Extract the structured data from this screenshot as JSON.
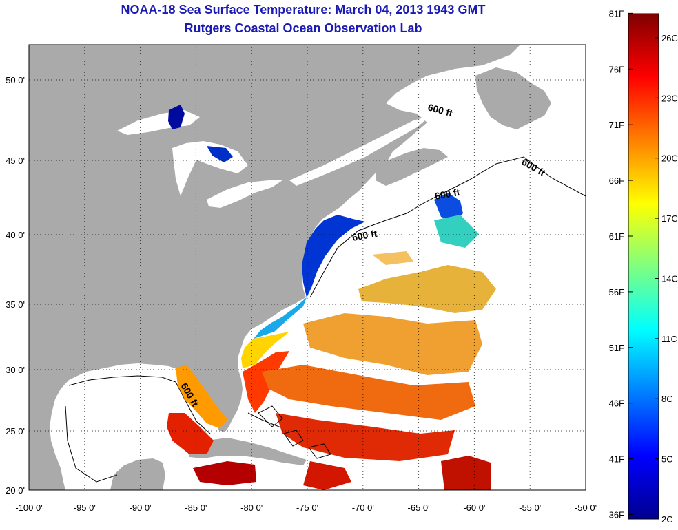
{
  "title": "NOAA-18 Sea Surface Temperature:  March 04, 2013 1943 GMT",
  "subtitle": "Rutgers Coastal Ocean Observation Lab",
  "map": {
    "lon_ticks": [
      "-100 0'",
      "-95 0'",
      "-90 0'",
      "-85 0'",
      "-80 0'",
      "-75 0'",
      "-70 0'",
      "-65 0'",
      "-60 0'",
      "-55 0'",
      "-50 0'"
    ],
    "lat_ticks": [
      "50 0'",
      "45 0'",
      "40 0'",
      "35 0'",
      "30 0'",
      "25 0'",
      "20 0'"
    ],
    "contour_labels": [
      "600 ft",
      "600 ft",
      "600 ft",
      "600 ft",
      "600 ft"
    ],
    "land_color": "#aaaaaa",
    "lake_color": "#ffffff"
  },
  "colorbar": {
    "fahrenheit": [
      "81F",
      "76F",
      "71F",
      "66F",
      "61F",
      "56F",
      "51F",
      "46F",
      "41F",
      "36F"
    ],
    "celsius": [
      "26C",
      "23C",
      "20C",
      "17C",
      "14C",
      "11C",
      "8C",
      "5C",
      "2C"
    ],
    "colormap": "jet",
    "min_c": 2,
    "max_c": 27.2
  }
}
